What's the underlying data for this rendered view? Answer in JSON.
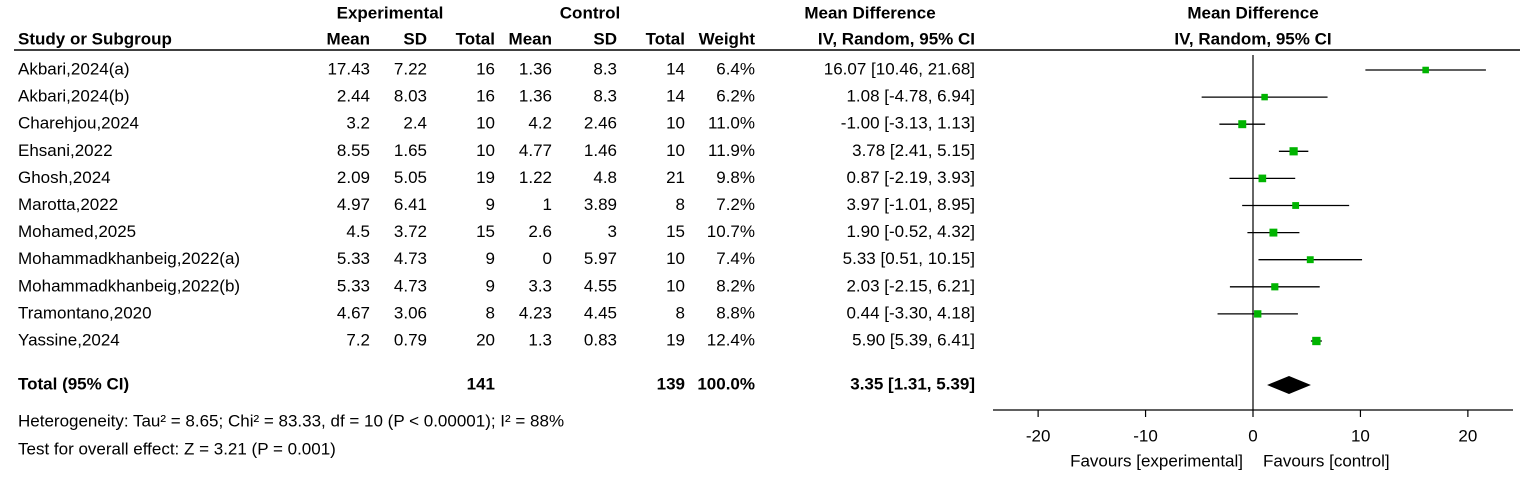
{
  "table": {
    "group_headers": [
      "Experimental",
      "Control",
      "Mean Difference"
    ],
    "columns": [
      "Study or Subgroup",
      "Mean",
      "SD",
      "Total",
      "Mean",
      "SD",
      "Total",
      "Weight",
      "IV, Random, 95% CI"
    ],
    "rows": [
      [
        "Akbari,2024(a)",
        "17.43",
        "7.22",
        "16",
        "1.36",
        "8.3",
        "14",
        "6.4%",
        "16.07 [10.46, 21.68]"
      ],
      [
        "Akbari,2024(b)",
        "2.44",
        "8.03",
        "16",
        "1.36",
        "8.3",
        "14",
        "6.2%",
        "1.08 [-4.78, 6.94]"
      ],
      [
        "Charehjou,2024",
        "3.2",
        "2.4",
        "10",
        "4.2",
        "2.46",
        "10",
        "11.0%",
        "-1.00 [-3.13, 1.13]"
      ],
      [
        "Ehsani,2022",
        "8.55",
        "1.65",
        "10",
        "4.77",
        "1.46",
        "10",
        "11.9%",
        "3.78 [2.41, 5.15]"
      ],
      [
        "Ghosh,2024",
        "2.09",
        "5.05",
        "19",
        "1.22",
        "4.8",
        "21",
        "9.8%",
        "0.87 [-2.19, 3.93]"
      ],
      [
        "Marotta,2022",
        "4.97",
        "6.41",
        "9",
        "1",
        "3.89",
        "8",
        "7.2%",
        "3.97 [-1.01, 8.95]"
      ],
      [
        "Mohamed,2025",
        "4.5",
        "3.72",
        "15",
        "2.6",
        "3",
        "15",
        "10.7%",
        "1.90 [-0.52, 4.32]"
      ],
      [
        "Mohammadkhanbeig,2022(a)",
        "5.33",
        "4.73",
        "9",
        "0",
        "5.97",
        "10",
        "7.4%",
        "5.33 [0.51, 10.15]"
      ],
      [
        "Mohammadkhanbeig,2022(b)",
        "5.33",
        "4.73",
        "9",
        "3.3",
        "4.55",
        "10",
        "8.2%",
        "2.03 [-2.15, 6.21]"
      ],
      [
        "Tramontano,2020",
        "4.67",
        "3.06",
        "8",
        "4.23",
        "4.45",
        "8",
        "8.8%",
        "0.44 [-3.30, 4.18]"
      ],
      [
        "Yassine,2024",
        "7.2",
        "0.79",
        "20",
        "1.3",
        "0.83",
        "19",
        "12.4%",
        "5.90 [5.39, 6.41]"
      ]
    ],
    "total": {
      "label": "Total (95% CI)",
      "exp_total": "141",
      "ctrl_total": "139",
      "weight": "100.0%",
      "ci": "3.35 [1.31, 5.39]"
    },
    "heterogeneity": "Heterogeneity: Tau² = 8.65; Chi² = 83.33, df = 10 (P < 0.00001); I² = 88%",
    "overall_effect": "Test for overall effect: Z = 3.21 (P = 0.001)"
  },
  "chart_data": {
    "type": "forest",
    "title": "Mean Difference",
    "subtitle": "IV, Random, 95% CI",
    "values": [
      16.07,
      1.08,
      -1.0,
      3.78,
      0.87,
      3.97,
      1.9,
      5.33,
      2.03,
      0.44,
      5.9
    ],
    "lower": [
      10.46,
      -4.78,
      -3.13,
      2.41,
      -2.19,
      -1.01,
      -0.52,
      0.51,
      -2.15,
      -3.3,
      5.39
    ],
    "upper": [
      21.68,
      6.94,
      1.13,
      5.15,
      3.93,
      8.95,
      4.32,
      10.15,
      6.21,
      4.18,
      6.41
    ],
    "weights": [
      6.4,
      6.2,
      11.0,
      11.9,
      9.8,
      7.2,
      10.7,
      7.4,
      8.2,
      8.8,
      12.4
    ],
    "overall": {
      "value": 3.35,
      "lower": 1.31,
      "upper": 5.39
    },
    "xlim": [
      -24.2,
      24.2
    ],
    "xticks": [
      -20,
      -10,
      0,
      10,
      20
    ],
    "x_labels": [
      "Favours [experimental]",
      "Favours [control]"
    ],
    "color": "#00b400",
    "line_color": "#000000"
  }
}
